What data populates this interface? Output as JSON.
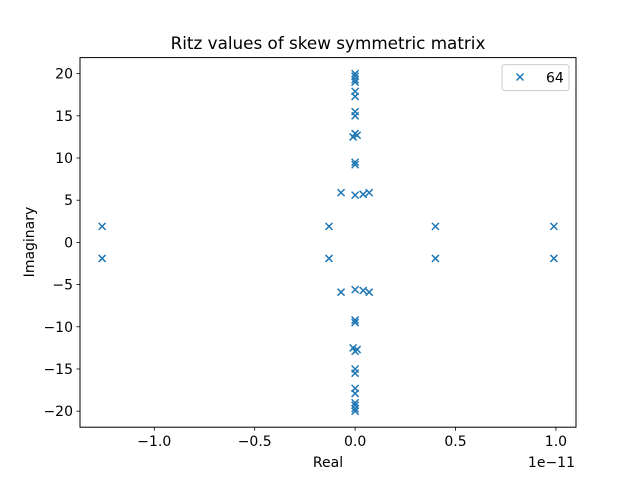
{
  "chart_data": {
    "type": "scatter",
    "title": "Ritz values of skew symmetric matrix",
    "xlabel": "Real",
    "ylabel": "Imaginary",
    "x_offset_label": "1e−11",
    "x_scale": 1e-11,
    "xlim": [
      -1.37,
      1.1
    ],
    "ylim": [
      -21.9,
      21.9
    ],
    "xticks": [
      -1.0,
      -0.5,
      0.0,
      0.5,
      1.0
    ],
    "xtick_labels": [
      "−1.0",
      "−0.5",
      "0.0",
      "0.5",
      "1.0"
    ],
    "yticks": [
      -20,
      -15,
      -10,
      -5,
      0,
      5,
      10,
      15,
      20
    ],
    "ytick_labels": [
      "−20",
      "−15",
      "−10",
      "−5",
      "0",
      "5",
      "10",
      "15",
      "20"
    ],
    "grid": false,
    "legend_position": "upper right",
    "marker": "x",
    "color": "#1f77b4",
    "series": [
      {
        "name": "64",
        "points": [
          [
            -1.26,
            1.9
          ],
          [
            -1.26,
            -1.9
          ],
          [
            -0.13,
            1.9
          ],
          [
            -0.13,
            -1.9
          ],
          [
            0.4,
            1.9
          ],
          [
            0.4,
            -1.9
          ],
          [
            0.99,
            1.9
          ],
          [
            0.99,
            -1.9
          ],
          [
            -0.07,
            5.9
          ],
          [
            -0.07,
            -5.9
          ],
          [
            0.0,
            5.6
          ],
          [
            0.0,
            -5.6
          ],
          [
            0.04,
            5.7
          ],
          [
            0.04,
            -5.7
          ],
          [
            0.07,
            5.9
          ],
          [
            0.07,
            -5.9
          ],
          [
            0.0,
            9.2
          ],
          [
            0.0,
            -9.2
          ],
          [
            0.0,
            9.5
          ],
          [
            0.0,
            -9.5
          ],
          [
            -0.01,
            12.5
          ],
          [
            -0.01,
            -12.5
          ],
          [
            0.01,
            12.7
          ],
          [
            0.01,
            -12.7
          ],
          [
            0.0,
            12.9
          ],
          [
            0.0,
            -12.9
          ],
          [
            0.0,
            15.0
          ],
          [
            0.0,
            -15.0
          ],
          [
            0.0,
            15.5
          ],
          [
            0.0,
            -15.5
          ],
          [
            0.0,
            17.3
          ],
          [
            0.0,
            -17.3
          ],
          [
            0.0,
            17.9
          ],
          [
            0.0,
            -17.9
          ],
          [
            0.0,
            19.0
          ],
          [
            0.0,
            -19.0
          ],
          [
            0.0,
            19.3
          ],
          [
            0.0,
            -19.3
          ],
          [
            0.0,
            19.7
          ],
          [
            0.0,
            -19.7
          ],
          [
            0.0,
            20.0
          ],
          [
            0.0,
            -20.0
          ]
        ]
      }
    ]
  }
}
